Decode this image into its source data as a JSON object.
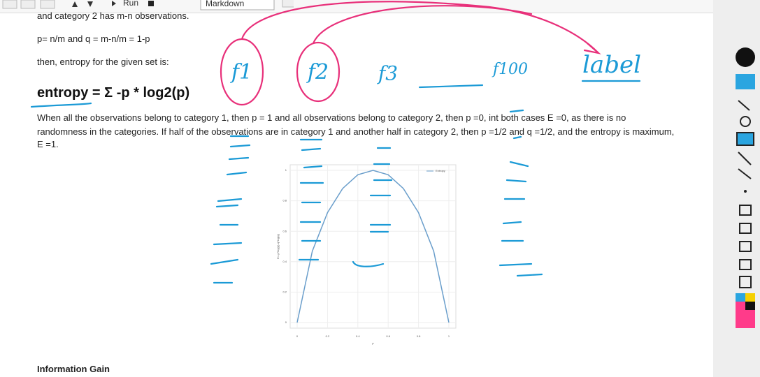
{
  "toolbar": {
    "run": "Run",
    "cell_type": "Markdown"
  },
  "cells": {
    "line_cut": "and category 2 has  m-n  observations.",
    "definitions": "p= n/m and q = m-n/m = 1-p",
    "intro": "then, entropy for the given set is:",
    "formula": "entropy = Σ -p * log2(p)",
    "paragraph": [
      "When all the observations belong to category 1, then p = 1 and all observations belong to category 2, then p =0, int both cases E =0, as there is no",
      "randomness in the categories. If half of the observations are in category 1 and another half in category 2, then p =1/2 and q =1/2, and the entropy is maximum,",
      "E =1."
    ],
    "next_heading": "Information Gain"
  },
  "figure": {
    "type": "line",
    "x_label": "p",
    "y_label": "E=-p*log(p)-q*log(q)",
    "series": [
      {
        "name": "Entropy",
        "color": "#6a9ecb",
        "x": [
          0,
          0.1,
          0.2,
          0.3,
          0.4,
          0.5,
          0.6,
          0.7,
          0.8,
          0.9,
          1
        ],
        "values": [
          0,
          0.469,
          0.722,
          0.881,
          0.971,
          1,
          0.971,
          0.881,
          0.722,
          0.469,
          0
        ]
      }
    ],
    "xlim": [
      0,
      1
    ],
    "ylim": [
      0,
      1
    ],
    "xticks": [
      0,
      0.2,
      0.4,
      0.6,
      0.8,
      1
    ],
    "yticks": [
      0,
      0.2,
      0.4,
      0.6,
      0.8,
      1
    ],
    "grid": true
  },
  "annotations": [
    "f1",
    "f2",
    "f3",
    "f100",
    "label"
  ]
}
